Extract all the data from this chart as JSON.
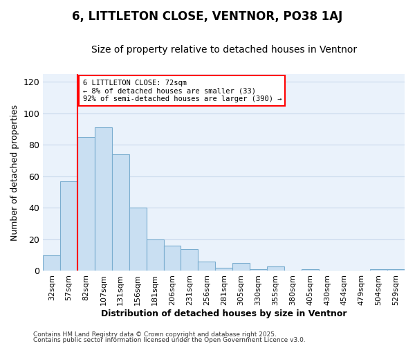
{
  "title": "6, LITTLETON CLOSE, VENTNOR, PO38 1AJ",
  "subtitle": "Size of property relative to detached houses in Ventnor",
  "xlabel": "Distribution of detached houses by size in Ventnor",
  "ylabel": "Number of detached properties",
  "bar_labels": [
    "32sqm",
    "57sqm",
    "82sqm",
    "107sqm",
    "131sqm",
    "156sqm",
    "181sqm",
    "206sqm",
    "231sqm",
    "256sqm",
    "281sqm",
    "305sqm",
    "330sqm",
    "355sqm",
    "380sqm",
    "405sqm",
    "430sqm",
    "454sqm",
    "479sqm",
    "504sqm",
    "529sqm"
  ],
  "bar_values": [
    10,
    57,
    85,
    91,
    74,
    40,
    20,
    16,
    14,
    6,
    2,
    5,
    1,
    3,
    0,
    1,
    0,
    0,
    0,
    1,
    1
  ],
  "bar_color": "#c9dff2",
  "bar_edge_color": "#7aadcf",
  "grid_color": "#c8d8eb",
  "vline_color": "red",
  "vline_x_index": 2,
  "annotation_text": "6 LITTLETON CLOSE: 72sqm\n← 8% of detached houses are smaller (33)\n92% of semi-detached houses are larger (390) →",
  "annotation_box_color": "white",
  "annotation_box_edge": "red",
  "ylim": [
    0,
    125
  ],
  "yticks": [
    0,
    20,
    40,
    60,
    80,
    100,
    120
  ],
  "footer1": "Contains HM Land Registry data © Crown copyright and database right 2025.",
  "footer2": "Contains public sector information licensed under the Open Government Licence v3.0.",
  "fig_bg_color": "#ffffff",
  "ax_bg_color": "#eaf2fb"
}
